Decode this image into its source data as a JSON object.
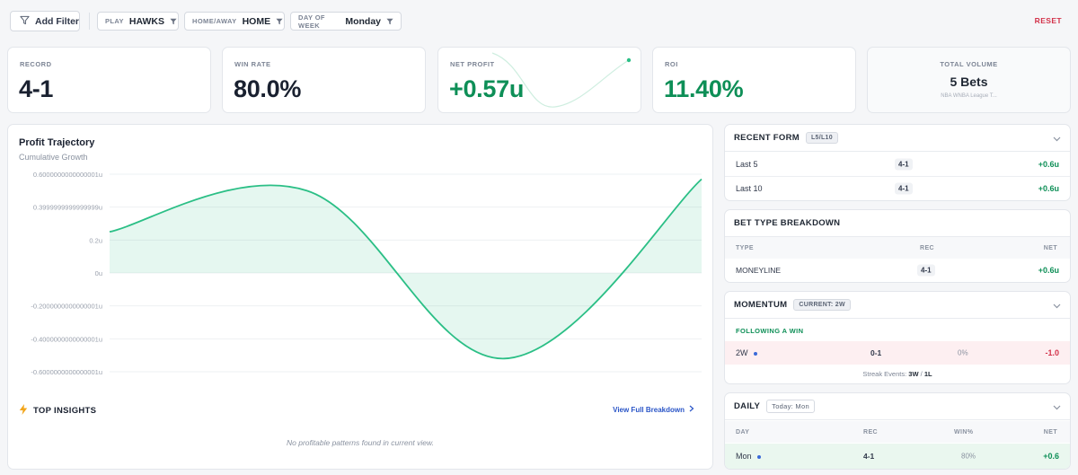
{
  "filters": {
    "add_label": "Add Filter",
    "chips": [
      {
        "key": "PLAY",
        "value": "HAWKS"
      },
      {
        "key": "HOME/AWAY",
        "value": "HOME"
      },
      {
        "key": "DAY OF WEEK",
        "value": "Monday"
      }
    ],
    "reset_label": "RESET"
  },
  "stats": {
    "record": {
      "label": "RECORD",
      "value": "4-1"
    },
    "win_rate": {
      "label": "WIN RATE",
      "value": "80.0%"
    },
    "net_profit": {
      "label": "NET PROFIT",
      "value": "+0.57u"
    },
    "roi": {
      "label": "ROI",
      "value": "11.40%"
    },
    "volume": {
      "label": "TOTAL VOLUME",
      "value": "5 Bets",
      "sub": "NBA WNBA League T..."
    }
  },
  "profit_chart": {
    "title": "Profit Trajectory",
    "subtitle": "Cumulative Growth"
  },
  "chart_data": {
    "type": "area",
    "title": "Profit Trajectory",
    "subtitle": "Cumulative Growth",
    "y_ticks": [
      "0.6000000000000001u",
      "0.3999999999999999u",
      "0.2u",
      "0u",
      "-0.2000000000000001u",
      "-0.4000000000000001u",
      "-0.6000000000000001u"
    ],
    "ylim": [
      -0.6,
      0.6
    ],
    "x": [
      0,
      1,
      2,
      3
    ],
    "values": [
      0.25,
      0.5,
      -0.52,
      0.57
    ],
    "grid": true,
    "color": "#2bbf86"
  },
  "insights": {
    "title": "TOP INSIGHTS",
    "view_all": "View Full Breakdown",
    "empty": "No profitable patterns found in current view."
  },
  "recent_form": {
    "title": "RECENT FORM",
    "tag": "L5/L10",
    "rows": [
      {
        "label": "Last 5",
        "rec": "4-1",
        "net": "+0.6u"
      },
      {
        "label": "Last 10",
        "rec": "4-1",
        "net": "+0.6u"
      }
    ]
  },
  "bet_type": {
    "title": "BET TYPE BREAKDOWN",
    "headers": {
      "type": "TYPE",
      "rec": "REC",
      "net": "NET"
    },
    "rows": [
      {
        "type": "MONEYLINE",
        "rec": "4-1",
        "net": "+0.6u"
      }
    ]
  },
  "momentum": {
    "title": "MOMENTUM",
    "tag": "CURRENT: 2W",
    "section": "FOLLOWING A WIN",
    "row": {
      "label": "2W",
      "rec": "0-1",
      "pct": "0%",
      "net": "-1.0"
    },
    "events_label": "Streak Events:",
    "events_w": "3W",
    "events_sep": "/",
    "events_l": "1L"
  },
  "daily": {
    "title": "DAILY",
    "tag": "Today: Mon",
    "headers": {
      "day": "DAY",
      "rec": "REC",
      "win": "WIN%",
      "net": "NET"
    },
    "row": {
      "day": "Mon",
      "rec": "4-1",
      "win": "80%",
      "net": "+0.6"
    }
  },
  "colors": {
    "accent_green": "#0e8f57",
    "accent_red": "#d3324a",
    "link": "#2a55c7"
  }
}
